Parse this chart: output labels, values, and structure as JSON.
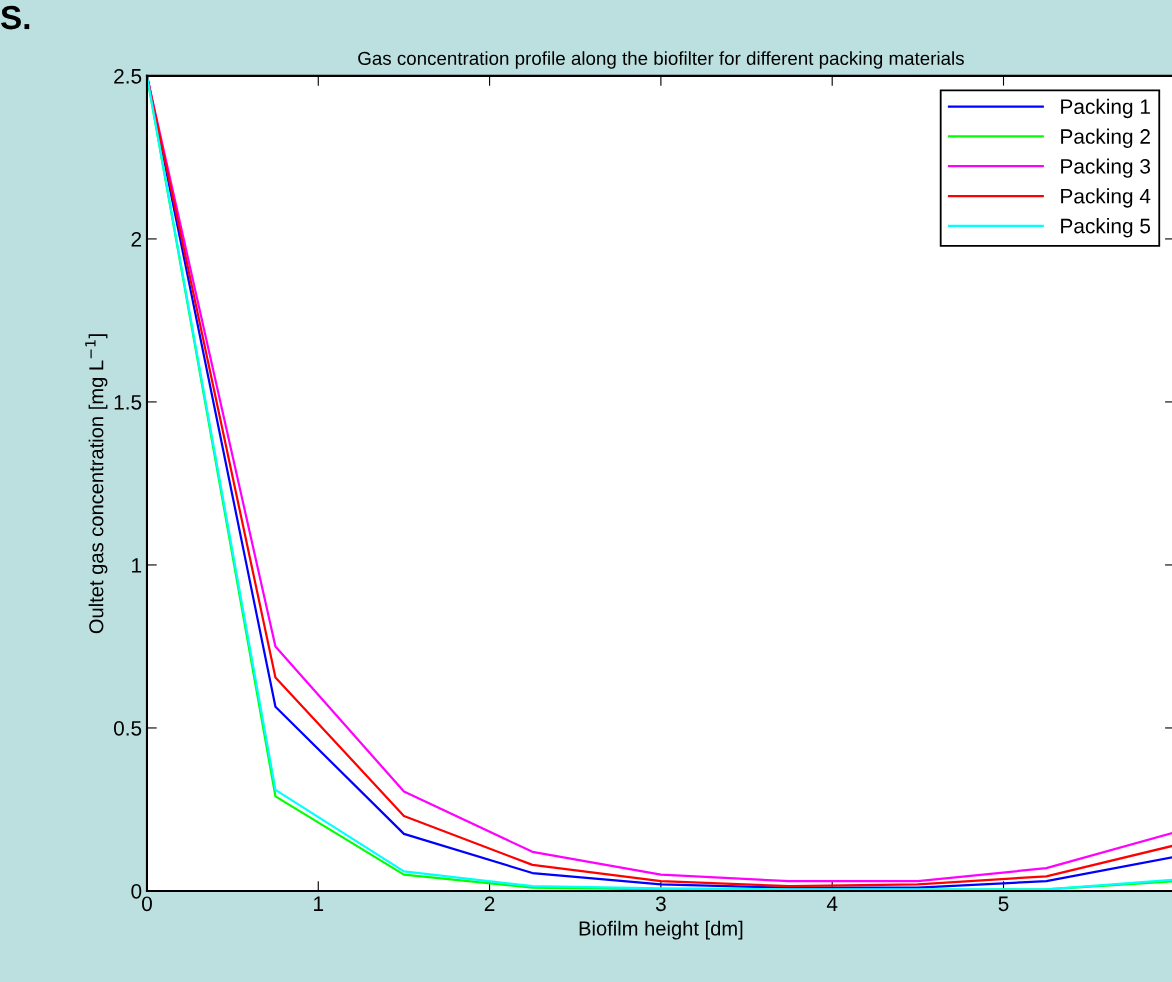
{
  "chart_data": {
    "type": "line",
    "title": "Gas concentration profile along the biofilter for different packing materials",
    "xlabel": "Biofilm height [dm]",
    "ylabel": "Oultet gas concentration [mg L$^{−1}$]",
    "annotations": [
      "S."
    ],
    "x": [
      0,
      0.75,
      1.5,
      2.25,
      3,
      3.75,
      4.5,
      5.25,
      6
    ],
    "series": [
      {
        "name": "Packing 1",
        "color": "#0000ff",
        "values": [
          2.5,
          0.565,
          0.175,
          0.055,
          0.02,
          0.01,
          0.01,
          0.03,
          0.105
        ]
      },
      {
        "name": "Packing 2",
        "color": "#00ff00",
        "values": [
          2.5,
          0.29,
          0.05,
          0.01,
          0.005,
          0.003,
          0.003,
          0.005,
          0.03
        ]
      },
      {
        "name": "Packing 3",
        "color": "#ff00ff",
        "values": [
          2.5,
          0.75,
          0.305,
          0.12,
          0.05,
          0.03,
          0.03,
          0.07,
          0.18
        ]
      },
      {
        "name": "Packing 4",
        "color": "#ff0000",
        "values": [
          2.5,
          0.655,
          0.23,
          0.08,
          0.03,
          0.015,
          0.02,
          0.045,
          0.14
        ]
      },
      {
        "name": "Packing 5",
        "color": "#00ffff",
        "values": [
          2.5,
          0.31,
          0.06,
          0.015,
          0.008,
          0.005,
          0.005,
          0.005,
          0.035
        ]
      }
    ],
    "xlim": [
      0,
      6
    ],
    "xticks": [
      0,
      1,
      2,
      3,
      4,
      5
    ],
    "ylim": [
      0,
      2.5
    ],
    "yticks": [
      0,
      0.5,
      1,
      1.5,
      2,
      2.5
    ],
    "grid": false,
    "legend": "top right",
    "marker": "none",
    "line_style": "solid"
  }
}
